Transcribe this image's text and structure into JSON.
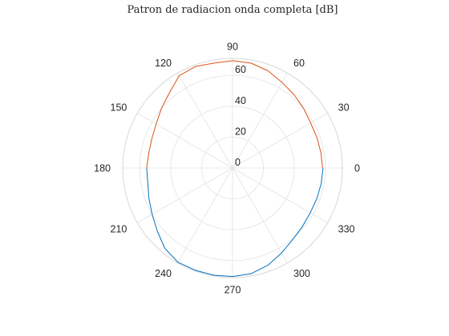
{
  "chart_data": {
    "type": "polar-line",
    "title": "Patron de radiacion onda completa [dB]",
    "theta_unit": "degrees",
    "theta_ticks": [
      0,
      30,
      60,
      90,
      120,
      150,
      180,
      210,
      240,
      270,
      300,
      330
    ],
    "r_ticks": [
      0,
      20,
      40,
      60
    ],
    "rlim": [
      0,
      71
    ],
    "grid": true,
    "series": [
      {
        "color": "#0072bd",
        "theta": [
          0,
          10,
          20,
          30,
          40,
          50,
          60,
          70,
          80,
          90,
          100,
          110,
          120,
          130,
          140,
          150,
          160,
          170,
          180,
          190,
          200,
          210,
          220,
          230,
          240,
          250,
          260,
          270,
          280,
          290,
          300,
          310,
          320,
          330,
          340,
          350,
          360
        ],
        "r": [
          null,
          null,
          null,
          null,
          null,
          null,
          null,
          null,
          null,
          null,
          null,
          null,
          null,
          null,
          null,
          null,
          null,
          null,
          55.5,
          55.6,
          57.5,
          60,
          63.5,
          68,
          70.5,
          70.5,
          70.5,
          70.3,
          69.5,
          67,
          63.5,
          60.5,
          59,
          58,
          58,
          58.2,
          58.5
        ]
      },
      {
        "color": "#d95319",
        "theta": [
          0,
          10,
          20,
          30,
          40,
          50,
          60,
          70,
          80,
          90,
          100,
          110,
          120,
          130,
          140,
          150,
          160,
          170,
          180,
          190,
          200,
          210,
          220,
          230,
          240,
          250,
          260,
          270,
          280,
          290,
          300,
          310,
          320,
          330,
          340,
          350,
          360
        ],
        "r": [
          58.2,
          58,
          58,
          58.3,
          60,
          62,
          64,
          67,
          69,
          69.5,
          69,
          70,
          69,
          63.5,
          60,
          57,
          55.5,
          55,
          55.5,
          null,
          null,
          null,
          null,
          null,
          null,
          null,
          null,
          null,
          null,
          null,
          null,
          null,
          null,
          null,
          null,
          null,
          null
        ]
      }
    ]
  }
}
